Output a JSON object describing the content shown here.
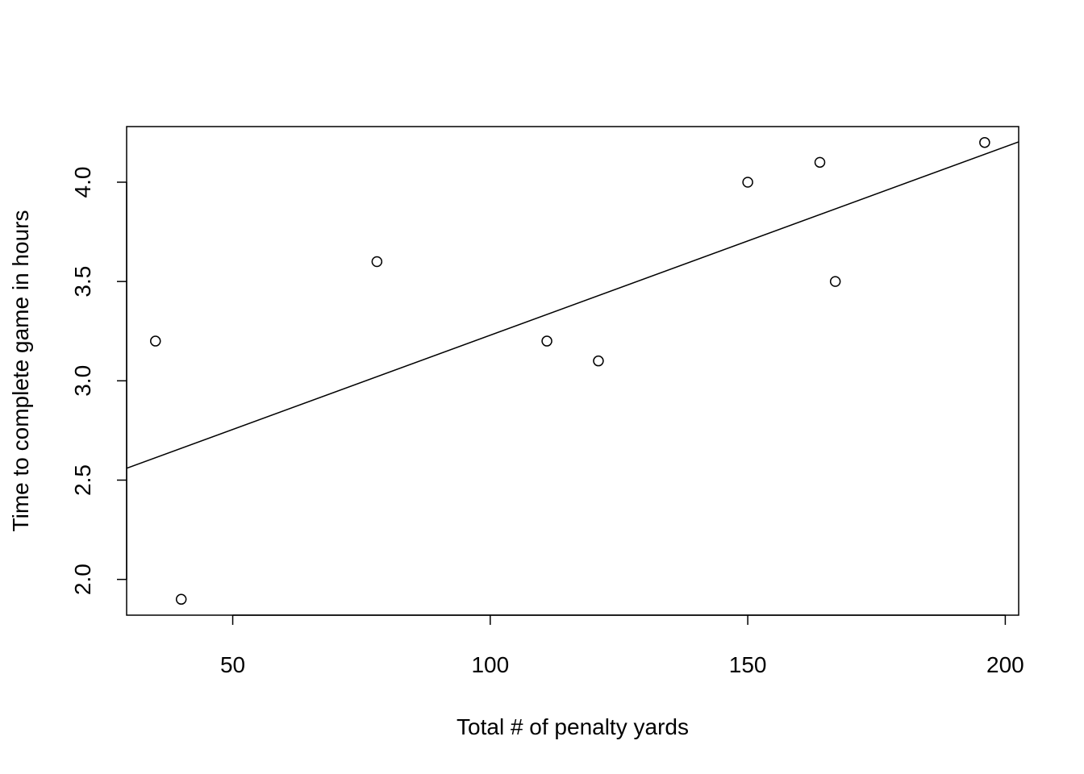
{
  "chart_data": {
    "type": "scatter",
    "title": "",
    "xlabel": "Total # of penalty yards",
    "ylabel": "Time to complete game in hours",
    "xlim": [
      29.4,
      202.6
    ],
    "ylim": [
      1.82,
      4.28
    ],
    "x_ticks": [
      50,
      100,
      150,
      200
    ],
    "x_tick_labels": [
      "50",
      "100",
      "150",
      "200"
    ],
    "y_ticks": [
      2.0,
      2.5,
      3.0,
      3.5,
      4.0
    ],
    "y_tick_labels": [
      "2.0",
      "2.5",
      "3.0",
      "3.5",
      "4.0"
    ],
    "grid": false,
    "points": {
      "x": [
        196,
        164,
        167,
        35,
        111,
        78,
        150,
        121,
        40
      ],
      "y": [
        4.2,
        4.1,
        3.5,
        3.2,
        3.2,
        3.6,
        4.0,
        3.1,
        1.9
      ]
    },
    "regression_line": {
      "intercept": 2.2806,
      "slope": 0.00949
    },
    "colors": {
      "points": "#000000",
      "line": "#000000",
      "frame": "#000000"
    }
  }
}
